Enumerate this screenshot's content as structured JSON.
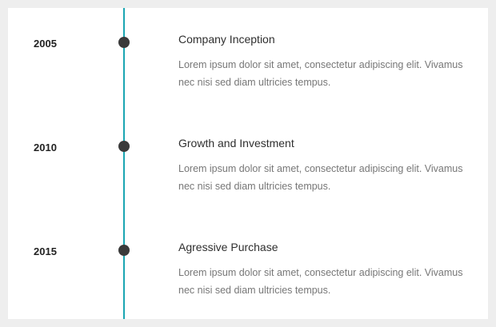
{
  "timeline": {
    "entries": [
      {
        "year": "2005",
        "title": "Company Inception",
        "description": "Lorem ipsum dolor sit amet, consectetur adipiscing elit. Vivamus nec nisi sed diam ultricies tempus."
      },
      {
        "year": "2010",
        "title": "Growth and Investment",
        "description": "Lorem ipsum dolor sit amet, consectetur adipiscing elit. Vivamus nec nisi sed diam ultricies tempus."
      },
      {
        "year": "2015",
        "title": "Agressive Purchase",
        "description": "Lorem ipsum dolor sit amet, consectetur adipiscing elit. Vivamus nec nisi sed diam ultricies tempus."
      }
    ],
    "colors": {
      "line": "#1aa6b2",
      "dot": "#3a3a3a",
      "background": "#eeeeee",
      "card": "#ffffff"
    }
  }
}
